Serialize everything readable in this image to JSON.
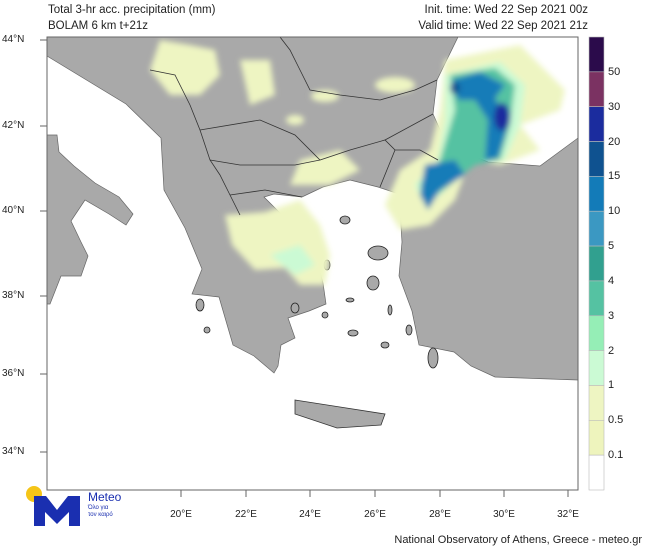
{
  "header": {
    "title": "Total 3-hr acc. precipitation (mm)",
    "model": "BOLAM 6 km t+21z",
    "init_time": "Init. time: Wed 22 Sep 2021 00z",
    "valid_time": "Valid time: Wed 22 Sep 2021 21z"
  },
  "map": {
    "lat_labels": [
      "44°N",
      "42°N",
      "40°N",
      "38°N",
      "36°N",
      "34°N"
    ],
    "lon_labels": [
      "20°E",
      "22°E",
      "24°E",
      "26°E",
      "28°E",
      "30°E",
      "32°E"
    ],
    "land_color": "#a9a9a9",
    "sea_color": "#ffffff"
  },
  "colorbar": {
    "labels": [
      "50",
      "30",
      "20",
      "15",
      "10",
      "5",
      "4",
      "3",
      "2",
      "1",
      "0.5",
      "0.1"
    ],
    "colors": [
      "#2b0b4b",
      "#7b3262",
      "#1b2c9e",
      "#0f5290",
      "#137bb8",
      "#3b98c2",
      "#31a08f",
      "#55c2a2",
      "#95eeb6",
      "#cbfad4",
      "#eef5c2",
      "#eef4bd",
      "#ffffff"
    ]
  },
  "logo": {
    "name": "Meteo",
    "tagline_1": "Όλο για",
    "tagline_2": "τον καιρό"
  },
  "footer": {
    "credit": "National Observatory of Athens, Greece - meteo.gr"
  }
}
